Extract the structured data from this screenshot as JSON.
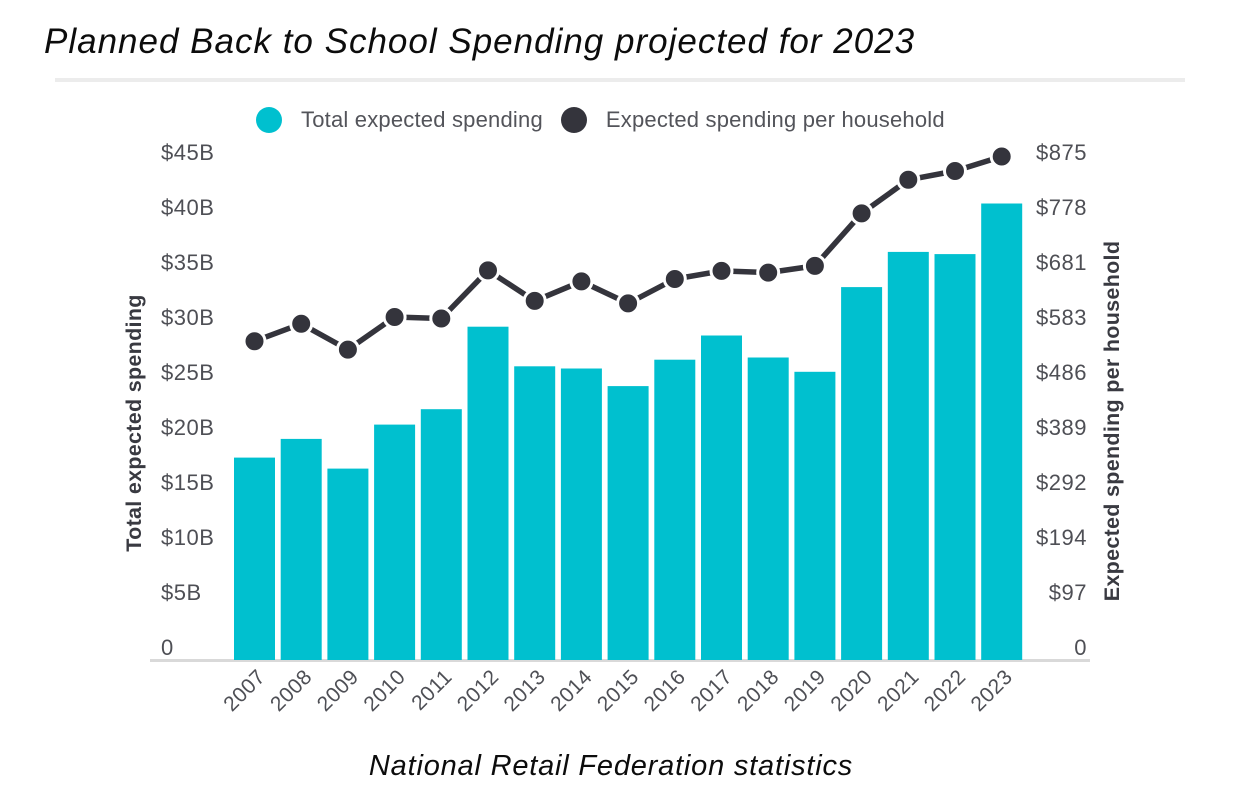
{
  "title": "Planned Back to School Spending projected for 2023",
  "caption": "National Retail Federation statistics",
  "legend": [
    {
      "label": "Total expected spending",
      "color": "#00c0cf"
    },
    {
      "label": "Expected spending per household",
      "color": "#34343c"
    }
  ],
  "colors": {
    "bar": "#00c0cf",
    "line": "#34343c",
    "dot_stroke": "#ffffff",
    "baseline": "#d9d9d9",
    "tick_text": "#4e4f55",
    "axis_title_text": "#393a41",
    "title_text": "#0c0c0c"
  },
  "chart_data": {
    "type": "combo",
    "categories": [
      "2007",
      "2008",
      "2009",
      "2010",
      "2011",
      "2012",
      "2013",
      "2014",
      "2015",
      "2016",
      "2017",
      "2018",
      "2019",
      "2020",
      "2021",
      "2022",
      "2023"
    ],
    "series": [
      {
        "name": "Total expected spending",
        "type": "bar",
        "axis": "left",
        "unit": "USD billions",
        "values": [
          18.4,
          20.1,
          17.4,
          21.4,
          22.8,
          30.3,
          26.7,
          26.5,
          24.9,
          27.3,
          29.5,
          27.5,
          26.2,
          33.9,
          37.1,
          36.9,
          41.5
        ]
      },
      {
        "name": "Expected spending per household",
        "type": "line",
        "axis": "right",
        "unit": "USD",
        "values": [
          563.49,
          594.24,
          548.72,
          606.4,
          603.63,
          688.62,
          634.78,
          669.28,
          630.36,
          673.57,
          687.72,
          684.79,
          696.7,
          789.49,
          848.9,
          864.35,
          890.07
        ]
      }
    ],
    "left_axis": {
      "label": "Total expected spending",
      "ticks": [
        "0",
        "$5B",
        "$10B",
        "$15B",
        "$20B",
        "$25B",
        "$30B",
        "$35B",
        "$40B",
        "$45B"
      ],
      "range": [
        0,
        45
      ]
    },
    "right_axis": {
      "label": "Expected spending per household",
      "ticks": [
        "0",
        "$97",
        "$194",
        "$292",
        "$389",
        "$486",
        "$583",
        "$681",
        "$778",
        "$875"
      ],
      "range": [
        0,
        875
      ]
    },
    "x_axis": {
      "tick_rotation": -45
    },
    "grid": "off",
    "legend_position": "top"
  }
}
